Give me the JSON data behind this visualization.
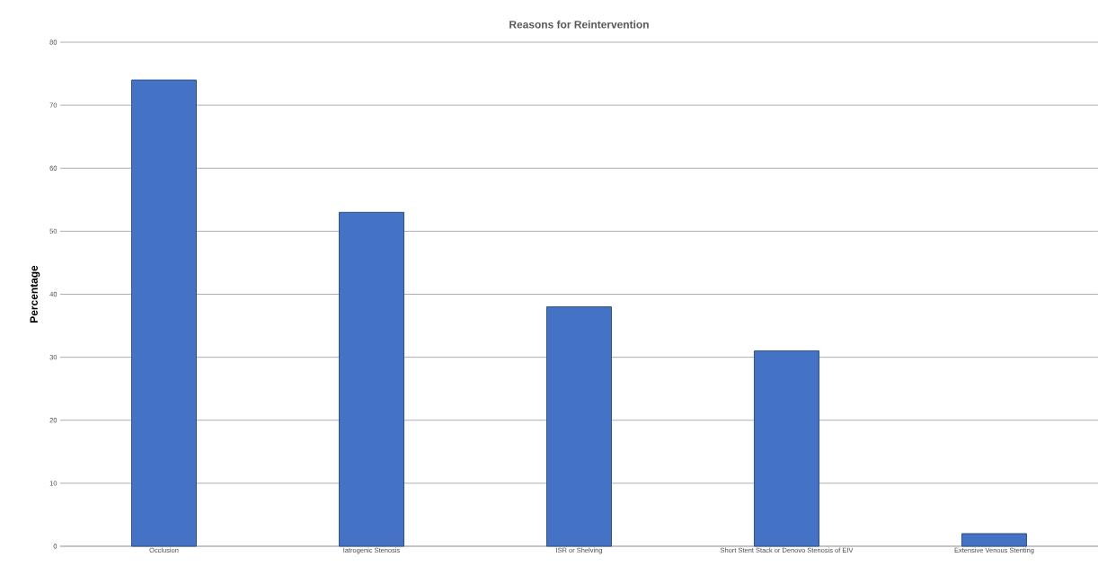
{
  "chart_data": {
    "type": "bar",
    "title": "Reasons for Reintervention",
    "ylabel": "Percentage",
    "categories": [
      "Occlusion",
      "Iatrogenic Stenosis",
      "ISR or Shelving",
      "Short Stent Stack or Denovo Stenosis of EIV",
      "Extensive Venous Stenting"
    ],
    "values": [
      74,
      53,
      38,
      31,
      2
    ],
    "color": "#4472c4",
    "ylim": [
      0,
      80
    ],
    "yticks": [
      0,
      10,
      20,
      30,
      40,
      50,
      60,
      70,
      80
    ],
    "grid": "y"
  }
}
